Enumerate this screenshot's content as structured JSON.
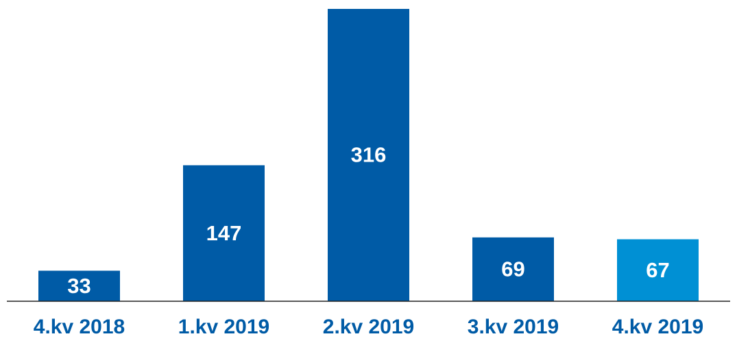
{
  "chart_data": {
    "type": "bar",
    "categories": [
      "4.kv 2018",
      "1.kv 2019",
      "2.kv 2019",
      "3.kv 2019",
      "4.kv 2019"
    ],
    "values": [
      33,
      147,
      316,
      69,
      67
    ],
    "colors": [
      "#005ba6",
      "#005ba6",
      "#005ba6",
      "#005ba6",
      "#0090d4"
    ]
  }
}
